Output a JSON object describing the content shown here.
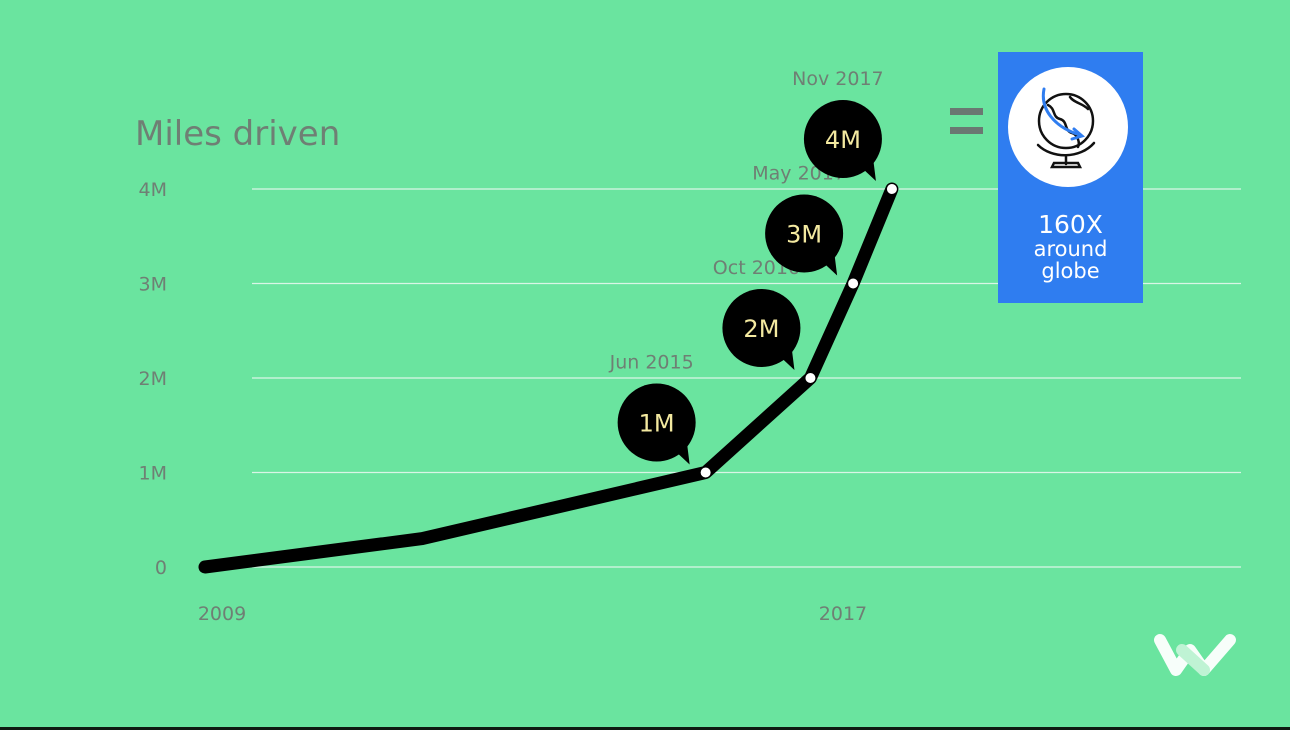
{
  "chart_data": {
    "type": "line",
    "title": "Miles driven",
    "x_ticks": [
      "2009",
      "2017"
    ],
    "y_ticks": [
      "0",
      "1M",
      "2M",
      "3M",
      "4M"
    ],
    "ylim": [
      0,
      4000000
    ],
    "xlim": [
      2009,
      2019.5
    ],
    "grid": true,
    "series": [
      {
        "values": [
          {
            "x": 2009.0,
            "y": 0
          },
          {
            "x": 2011.8,
            "y": 300000
          },
          {
            "x": 2015.45,
            "y": 1000000
          },
          {
            "x": 2016.8,
            "y": 2000000
          },
          {
            "x": 2017.35,
            "y": 3000000
          },
          {
            "x": 2017.85,
            "y": 4000000
          }
        ]
      }
    ],
    "milestones": [
      {
        "date": "Jun 2015",
        "value": "1M",
        "x": 2015.45,
        "y": 1000000
      },
      {
        "date": "Oct 2016",
        "value": "2M",
        "x": 2016.8,
        "y": 2000000
      },
      {
        "date": "May 2017",
        "value": "3M",
        "x": 2017.35,
        "y": 3000000
      },
      {
        "date": "Nov 2017",
        "value": "4M",
        "x": 2017.85,
        "y": 4000000
      }
    ]
  },
  "comparison": {
    "lines": [
      "160X",
      "around",
      "globe"
    ],
    "icon": "globe-icon",
    "color": "#2f7df0"
  },
  "logo": "brand-logo-icon",
  "colors": {
    "background": "#6ae49f",
    "line": "#000000",
    "gridline": "#d9f5e6",
    "bubble_text": "#f3e9a0",
    "muted_text": "#6f7f74"
  }
}
